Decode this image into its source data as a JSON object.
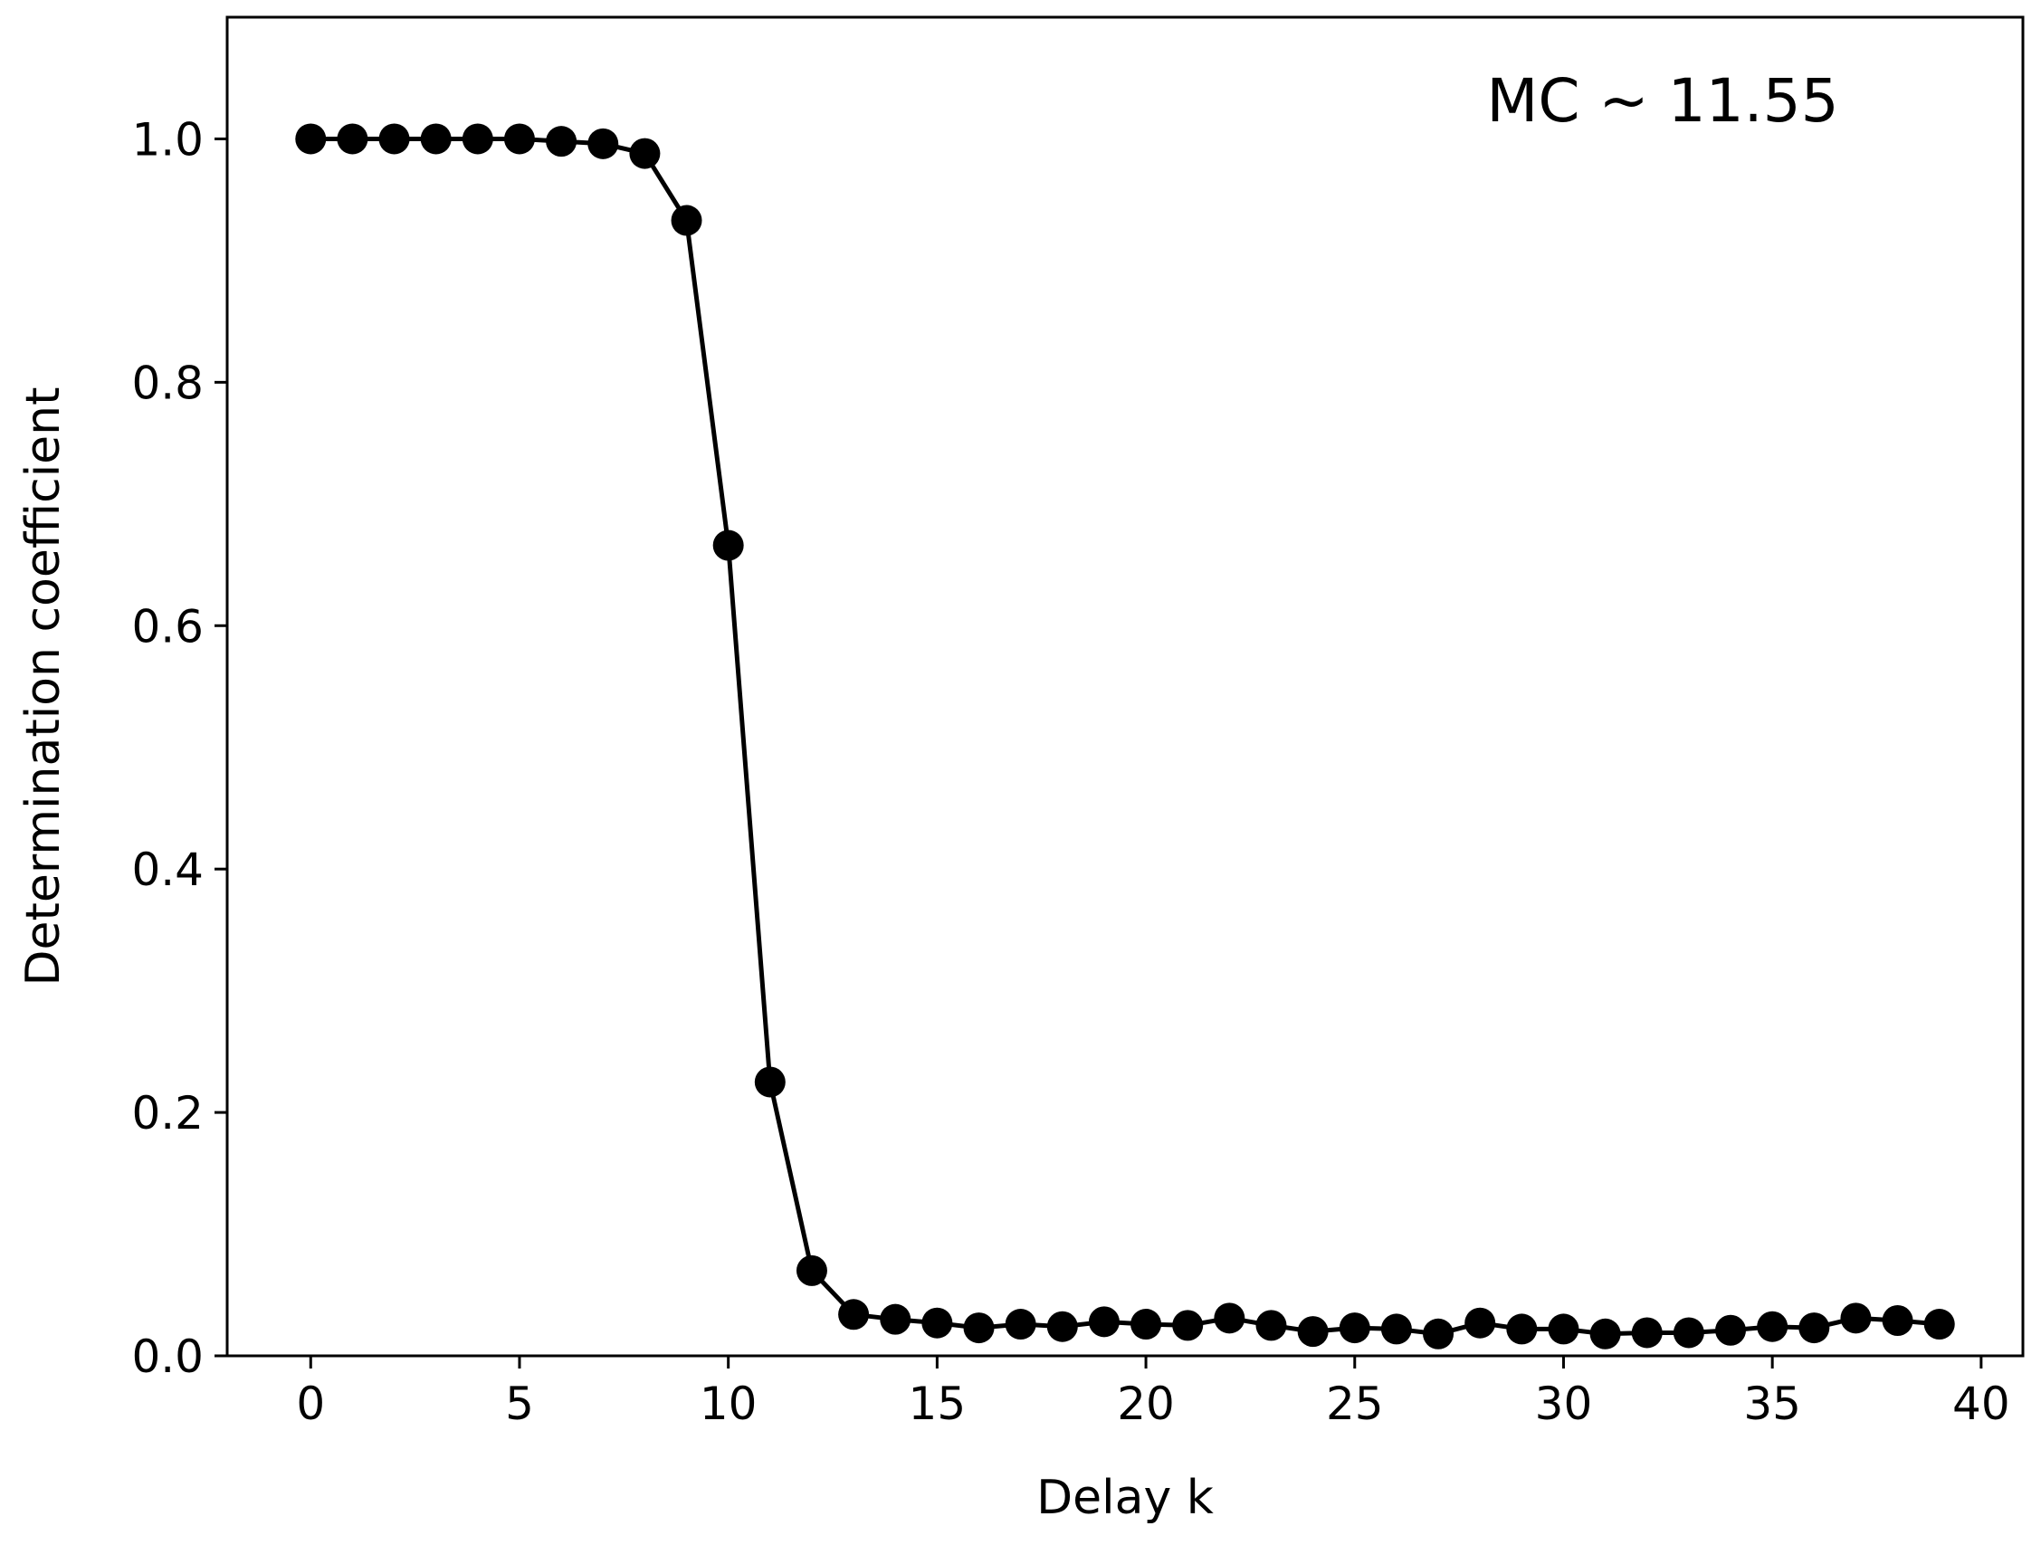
{
  "chart_data": {
    "type": "line",
    "xlabel": "Delay k",
    "ylabel": "Determination coefficient",
    "annotation": "MC ~ 11.55",
    "xlim": [
      -2,
      41
    ],
    "ylim": [
      0.0,
      1.1
    ],
    "xticks": [
      0,
      5,
      10,
      15,
      20,
      25,
      30,
      35,
      40
    ],
    "yticks": [
      0.0,
      0.2,
      0.4,
      0.6,
      0.8,
      1.0
    ],
    "ytick_labels": [
      "0.0",
      "0.2",
      "0.4",
      "0.6",
      "0.8",
      "1.0"
    ],
    "grid": false,
    "legend": "none",
    "series": [
      {
        "color": "#000000",
        "marker": "circle",
        "x": [
          0,
          1,
          2,
          3,
          4,
          5,
          6,
          7,
          8,
          9,
          10,
          11,
          12,
          13,
          14,
          15,
          16,
          17,
          18,
          19,
          20,
          21,
          22,
          23,
          24,
          25,
          26,
          27,
          28,
          29,
          30,
          31,
          32,
          33,
          34,
          35,
          36,
          37,
          38,
          39
        ],
        "y": [
          1.0,
          1.0,
          1.0,
          1.0,
          1.0,
          1.0,
          0.998,
          0.996,
          0.988,
          0.933,
          0.666,
          0.225,
          0.07,
          0.034,
          0.03,
          0.027,
          0.023,
          0.026,
          0.024,
          0.028,
          0.026,
          0.025,
          0.031,
          0.025,
          0.02,
          0.023,
          0.022,
          0.018,
          0.027,
          0.022,
          0.022,
          0.018,
          0.019,
          0.019,
          0.021,
          0.024,
          0.023,
          0.031,
          0.029,
          0.026
        ]
      }
    ]
  }
}
